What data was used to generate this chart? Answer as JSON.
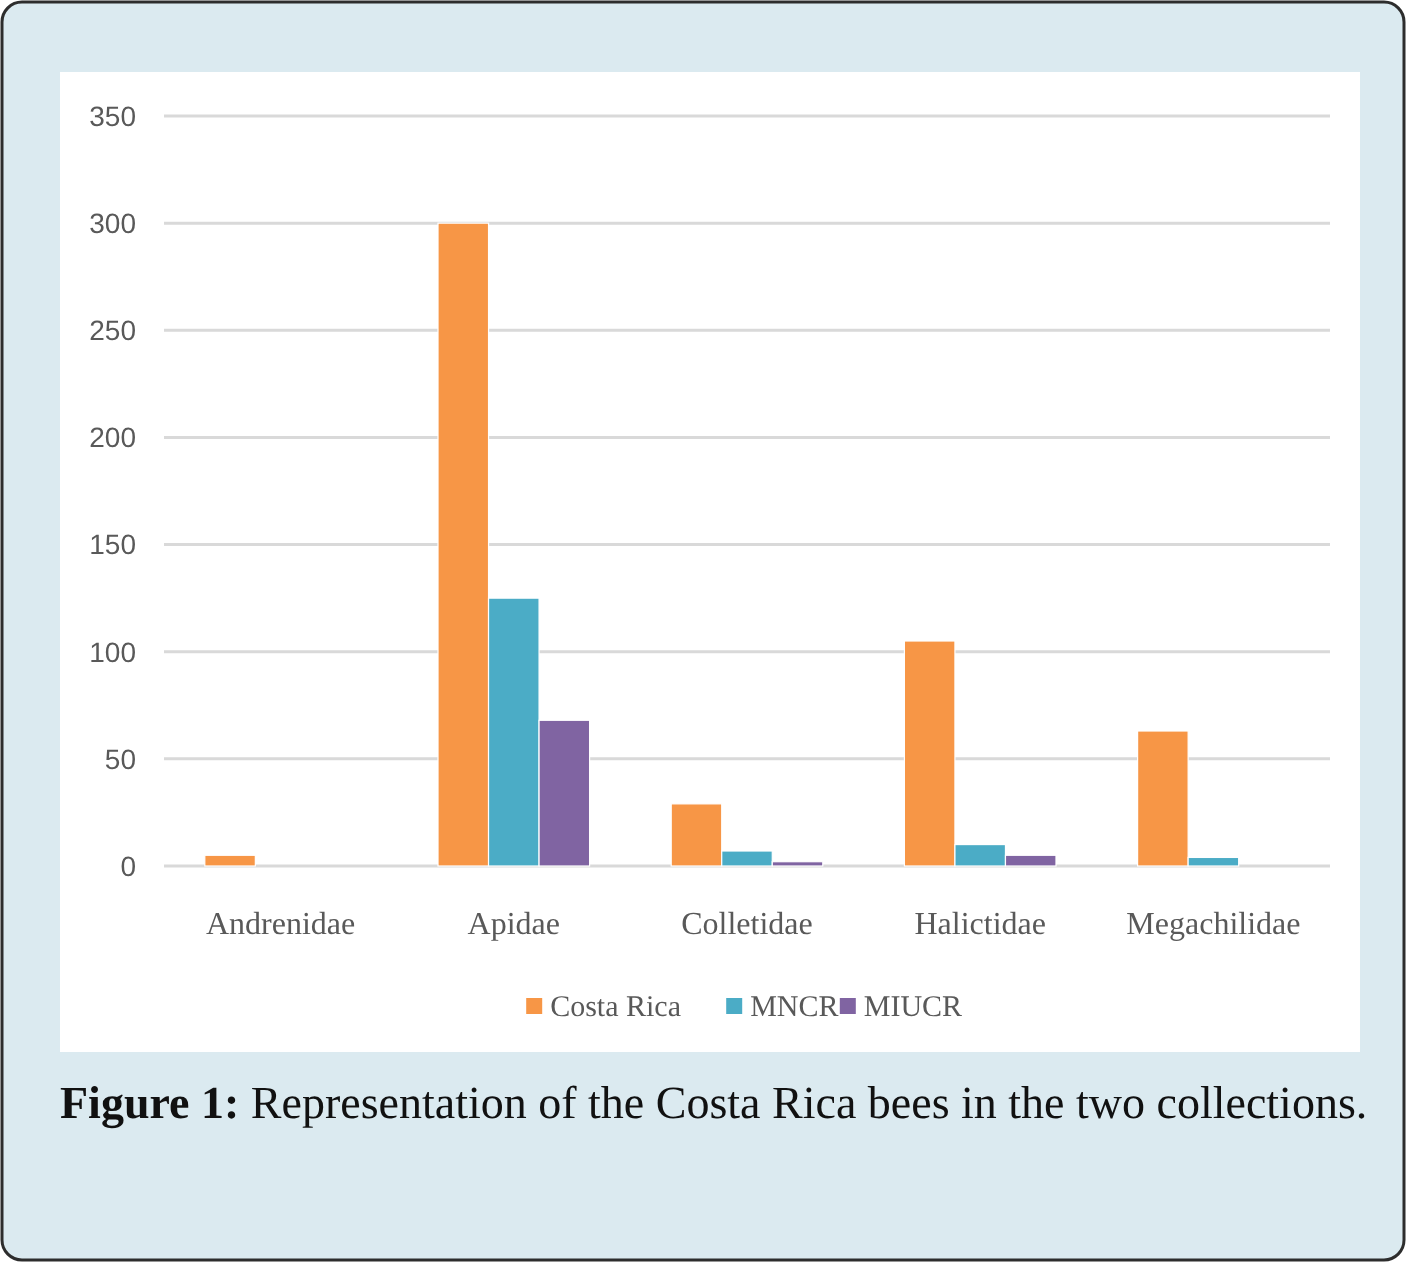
{
  "chart_data": {
    "type": "bar",
    "categories": [
      "Andrenidae",
      "Apidae",
      "Colletidae",
      "Halictidae",
      "Megachilidae"
    ],
    "series": [
      {
        "name": "Costa Rica",
        "color": "#f79646",
        "values": [
          5,
          300,
          29,
          105,
          63
        ]
      },
      {
        "name": "MNCR",
        "color": "#4bacc6",
        "values": [
          0,
          125,
          7,
          10,
          4
        ]
      },
      {
        "name": "MIUCR",
        "color": "#8064a2",
        "values": [
          0,
          68,
          2,
          5,
          0
        ]
      }
    ],
    "ylim": [
      0,
      350
    ],
    "yticks": [
      0,
      50,
      100,
      150,
      200,
      250,
      300,
      350
    ],
    "grid": "y",
    "legend": "bottom",
    "annotations": [
      "Figure 1: Representation of the Costa Rica bees in the two collections."
    ]
  }
}
